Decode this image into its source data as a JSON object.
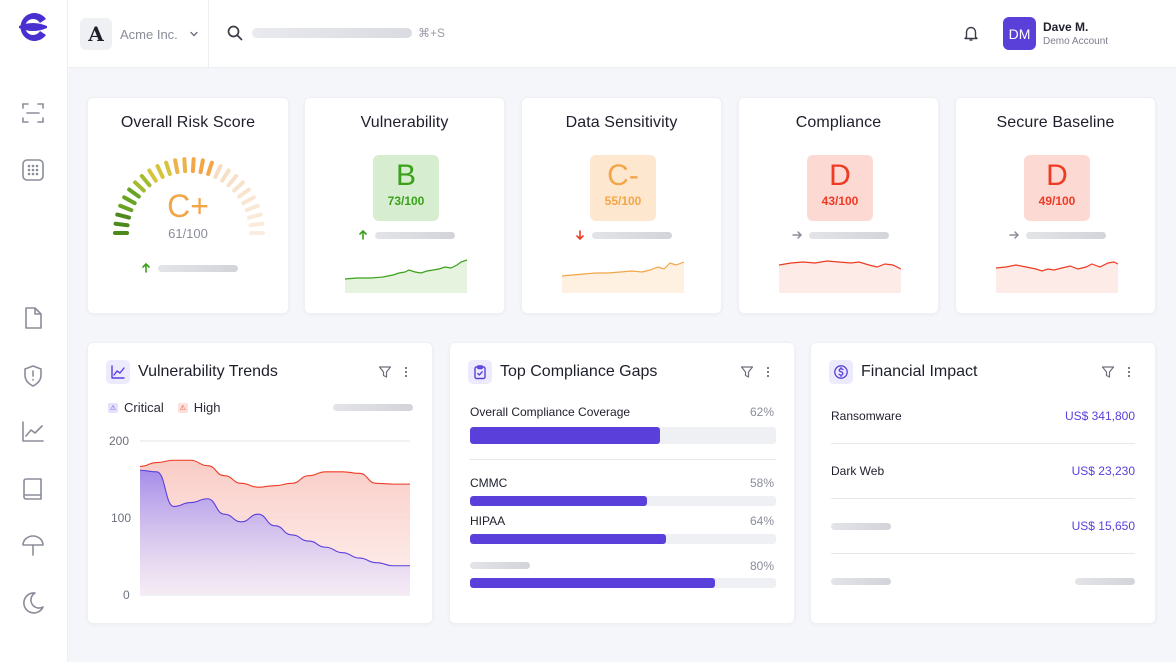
{
  "app": {
    "org_name": "Acme Inc.",
    "org_initial": "A",
    "search_shortcut": "⌘+S",
    "user": {
      "initials": "DM",
      "name": "Dave M.",
      "role": "Demo Account"
    }
  },
  "sidebar": {
    "icons": [
      "scan-icon",
      "apps-grid-icon",
      "document-icon",
      "shield-alert-icon",
      "trend-chart-icon",
      "book-icon",
      "umbrella-icon",
      "moon-icon"
    ]
  },
  "colors": {
    "accent": "#5b3fdb",
    "grade_b_bg": "#d7edcf",
    "grade_b_fg": "#3aa11a",
    "grade_c_bg": "#fde8cf",
    "grade_c_fg": "#f3a549",
    "grade_d_bg": "#fdd9d4",
    "grade_d_fg": "#ee3b24",
    "critical": "#6b4fe0",
    "high": "#f0867a"
  },
  "overall": {
    "title": "Overall Risk Score",
    "grade": "C+",
    "score": "61/100",
    "trend": "up",
    "gauge_fraction": 0.61
  },
  "score_cards": [
    {
      "title": "Vulnerability",
      "grade": "B",
      "score": "73/100",
      "trend": "up",
      "tone": "b"
    },
    {
      "title": "Data Sensitivity",
      "grade": "C-",
      "score": "55/100",
      "trend": "down",
      "tone": "c"
    },
    {
      "title": "Compliance",
      "grade": "D",
      "score": "43/100",
      "trend": "flat",
      "tone": "d"
    },
    {
      "title": "Secure Baseline",
      "grade": "D",
      "score": "49/100",
      "trend": "flat",
      "tone": "d"
    }
  ],
  "vuln_trends": {
    "title": "Vulnerability Trends",
    "legend": {
      "critical": "Critical",
      "high": "High"
    },
    "y_ticks": [
      "200",
      "100",
      "0"
    ]
  },
  "chart_data": {
    "type": "area",
    "title": "Vulnerability Trends",
    "xlabel": "",
    "ylabel": "",
    "ylim": [
      0,
      200
    ],
    "x": [
      0,
      1,
      2,
      3,
      4,
      5,
      6,
      7,
      8,
      9,
      10,
      11,
      12,
      13,
      14,
      15,
      16
    ],
    "series": [
      {
        "name": "High",
        "values": [
          167,
          172,
          175,
          175,
          168,
          155,
          145,
          140,
          142,
          145,
          155,
          160,
          160,
          158,
          145,
          144,
          144
        ]
      },
      {
        "name": "Critical",
        "values": [
          162,
          160,
          115,
          120,
          125,
          105,
          95,
          105,
          90,
          78,
          70,
          62,
          55,
          48,
          42,
          38,
          38
        ]
      }
    ]
  },
  "compliance": {
    "title": "Top Compliance Gaps",
    "coverage_label": "Overall Compliance Coverage",
    "coverage_pct": "62%",
    "coverage_value": 0.62,
    "items": [
      {
        "label": "CMMC",
        "pct": "58%",
        "value": 0.58
      },
      {
        "label": "HIPAA",
        "pct": "64%",
        "value": 0.64
      },
      {
        "label": "",
        "pct": "80%",
        "value": 0.8
      }
    ]
  },
  "financial": {
    "title": "Financial Impact",
    "rows": [
      {
        "label": "Ransomware",
        "value": "US$ 341,800"
      },
      {
        "label": "Dark Web",
        "value": "US$ 23,230"
      },
      {
        "label": "",
        "value": "US$ 15,650"
      },
      {
        "label": "",
        "value": ""
      }
    ]
  }
}
